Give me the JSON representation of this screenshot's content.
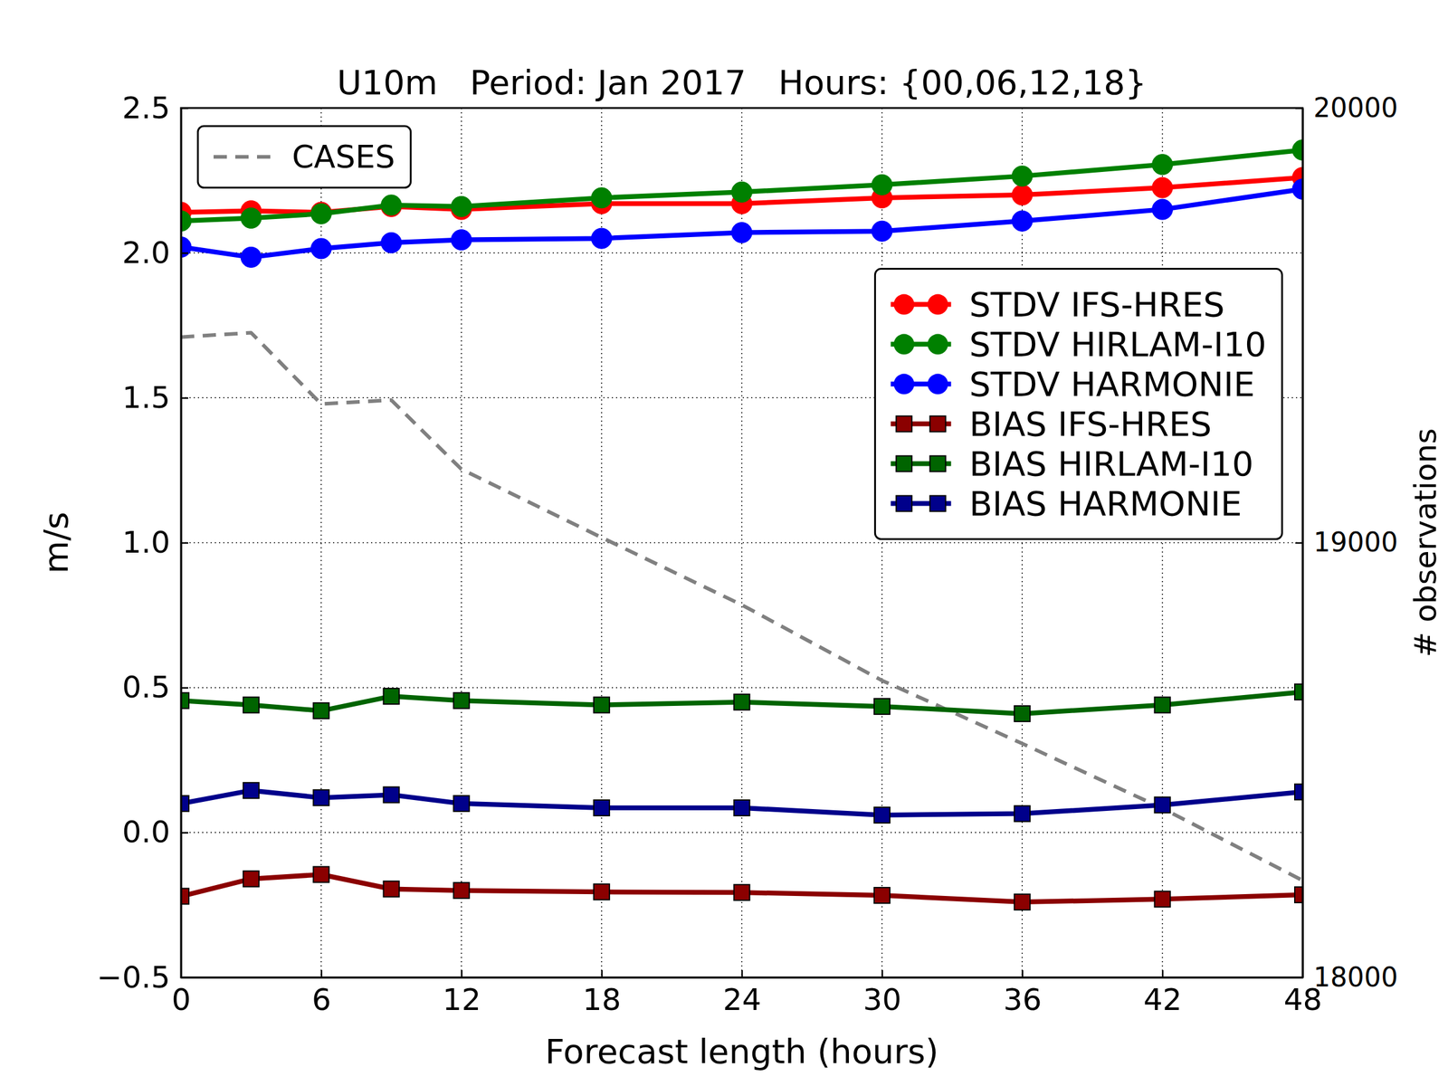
{
  "chart_data": {
    "type": "line",
    "title": "U10m   Period: Jan 2017   Hours: {00,06,12,18}",
    "x_label": "Forecast length (hours)",
    "y_label": "m/s",
    "y2_label": "# observations",
    "x": [
      0,
      3,
      6,
      9,
      12,
      18,
      24,
      30,
      36,
      42,
      48
    ],
    "xlim": [
      0,
      48
    ],
    "xticks": [
      0,
      6,
      12,
      18,
      24,
      30,
      36,
      42,
      48
    ],
    "ylim": [
      -0.5,
      2.5
    ],
    "yticks": [
      {
        "value": -0.5,
        "label": "−0.5"
      },
      {
        "value": 0,
        "label": "0.0"
      },
      0.5,
      {
        "value": 1,
        "label": "1.0"
      },
      1.5,
      {
        "value": 2,
        "label": "2.0"
      },
      2.5
    ],
    "y2lim": [
      18000,
      20000
    ],
    "y2ticks": [
      18000,
      19000,
      20000
    ],
    "grid": true,
    "legend": "right",
    "series": [
      {
        "name": "STDV IFS-HRES",
        "color": "#ff0000",
        "marker": "circle",
        "line_style": "solid",
        "values": [
          2.14,
          2.145,
          2.14,
          2.16,
          2.15,
          2.17,
          2.17,
          2.19,
          2.2,
          2.225,
          2.26
        ]
      },
      {
        "name": "STDV HIRLAM-I10",
        "color": "#008000",
        "marker": "circle",
        "line_style": "solid",
        "values": [
          2.11,
          2.12,
          2.135,
          2.165,
          2.16,
          2.19,
          2.21,
          2.235,
          2.265,
          2.305,
          2.355
        ]
      },
      {
        "name": "STDV HARMONIE",
        "color": "#0000ff",
        "marker": "circle",
        "line_style": "solid",
        "values": [
          2.02,
          1.985,
          2.015,
          2.035,
          2.045,
          2.05,
          2.07,
          2.075,
          2.11,
          2.15,
          2.22
        ]
      },
      {
        "name": "BIAS IFS-HRES",
        "color": "#8b0000",
        "marker": "square",
        "line_style": "solid",
        "values": [
          -0.22,
          -0.16,
          -0.145,
          -0.195,
          -0.2,
          -0.205,
          -0.207,
          -0.217,
          -0.24,
          -0.23,
          -0.215
        ]
      },
      {
        "name": "BIAS HIRLAM-I10",
        "color": "#006400",
        "marker": "square",
        "line_style": "solid",
        "values": [
          0.455,
          0.44,
          0.42,
          0.47,
          0.455,
          0.44,
          0.45,
          0.435,
          0.41,
          0.44,
          0.485
        ]
      },
      {
        "name": "BIAS HARMONIE",
        "color": "#00008b",
        "marker": "square",
        "line_style": "solid",
        "values": [
          0.1,
          0.145,
          0.12,
          0.13,
          0.1,
          0.085,
          0.085,
          0.06,
          0.065,
          0.095,
          0.14
        ]
      },
      {
        "name": "CASES",
        "color": "#808080",
        "marker": "none",
        "line_style": "dashed",
        "axis": "y2",
        "values": [
          19473,
          19483,
          19319,
          19328,
          19169,
          19012,
          18857,
          18683,
          18538,
          18389,
          18223
        ]
      }
    ]
  }
}
